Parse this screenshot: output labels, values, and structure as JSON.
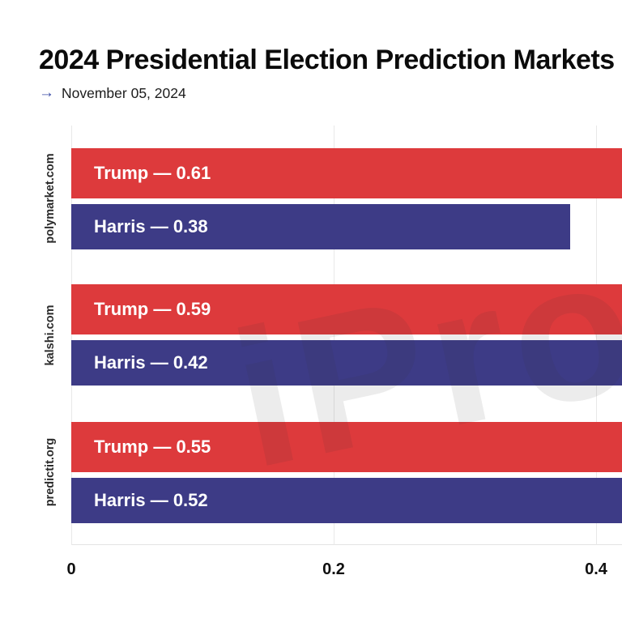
{
  "header": {
    "title": "2024 Presidential Election Prediction Markets",
    "arrow_icon": "→",
    "date_label": "November 05, 2024"
  },
  "watermark": {
    "text": "iProto"
  },
  "colors": {
    "trump_bar": "#dd3a3c",
    "harris_bar": "#3d3b86",
    "grid": "#e8e8e8",
    "arrow": "#3b4da6",
    "bar_label_text": "#ffffff"
  },
  "chart_data": {
    "type": "bar",
    "orientation": "horizontal",
    "title": "2024 Presidential Election Prediction Markets",
    "subtitle": "November 05, 2024",
    "categories": [
      "polymarket.com",
      "kalshi.com",
      "predictit.org"
    ],
    "series": [
      {
        "name": "Trump",
        "color": "#dd3a3c",
        "values": [
          0.61,
          0.59,
          0.55
        ]
      },
      {
        "name": "Harris",
        "color": "#3d3b86",
        "values": [
          0.38,
          0.42,
          0.52
        ]
      }
    ],
    "bar_labels": [
      [
        "Trump — 0.61",
        "Harris — 0.38"
      ],
      [
        "Trump — 0.59",
        "Harris — 0.42"
      ],
      [
        "Trump — 0.55",
        "Harris — 0.52"
      ]
    ],
    "label_separator": " — ",
    "x_tick_values": [
      0,
      0.2,
      0.4
    ],
    "x_tick_labels": [
      "0",
      "0.2",
      "0.4"
    ],
    "xlim_visible": [
      0,
      0.42
    ],
    "grid": true,
    "legend": false
  }
}
